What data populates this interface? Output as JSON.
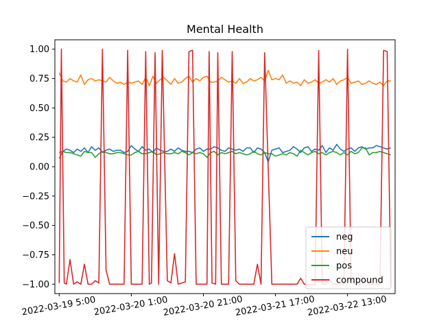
{
  "chart_data": {
    "type": "line",
    "title": "Mental Health",
    "xlabel": "",
    "ylabel": "",
    "x_ticks": [
      "2022-03-19 5:00",
      "2022-03-20 1:00",
      "2022-03-20 21:00",
      "2022-03-21 17:00",
      "2022-03-22 13:00"
    ],
    "y_ticks": [
      "1.00",
      "0.75",
      "0.50",
      "0.25",
      "0.00",
      "−0.25",
      "−0.50",
      "−0.75",
      "−1.00"
    ],
    "ylim": [
      -1.08,
      1.08
    ],
    "xlim": [
      -0.06,
      4.66
    ],
    "grid": false,
    "legend_position": "lower right",
    "series": [
      {
        "name": "neg",
        "color": "#1f77b4",
        "x": [
          0.0,
          0.05,
          0.1,
          0.15,
          0.2,
          0.25,
          0.3,
          0.35,
          0.4,
          0.45,
          0.5,
          0.55,
          0.6,
          0.65,
          0.7,
          0.75,
          0.8,
          0.85,
          0.9,
          0.95,
          1.0,
          1.05,
          1.1,
          1.15,
          1.2,
          1.25,
          1.3,
          1.35,
          1.4,
          1.45,
          1.5,
          1.55,
          1.6,
          1.65,
          1.7,
          1.75,
          1.8,
          1.85,
          1.9,
          1.95,
          2.0,
          2.05,
          2.1,
          2.15,
          2.2,
          2.25,
          2.3,
          2.35,
          2.4,
          2.45,
          2.5,
          2.55,
          2.6,
          2.65,
          2.7,
          2.75,
          2.8,
          2.85,
          2.9,
          2.95,
          3.0,
          3.05,
          3.1,
          3.15,
          3.2,
          3.25,
          3.3,
          3.35,
          3.4,
          3.45,
          3.5,
          3.55,
          3.6,
          3.65,
          3.7,
          3.75,
          3.8,
          3.85,
          3.9,
          3.95,
          4.0,
          4.05,
          4.1,
          4.15,
          4.2,
          4.25,
          4.3,
          4.35,
          4.4,
          4.45,
          4.5,
          4.55,
          4.6
        ],
        "y": [
          0.12,
          0.13,
          0.15,
          0.14,
          0.12,
          0.15,
          0.13,
          0.16,
          0.12,
          0.17,
          0.14,
          0.16,
          0.12,
          0.14,
          0.15,
          0.13,
          0.14,
          0.14,
          0.12,
          0.13,
          0.18,
          0.15,
          0.13,
          0.17,
          0.14,
          0.15,
          0.12,
          0.16,
          0.14,
          0.13,
          0.13,
          0.15,
          0.13,
          0.16,
          0.14,
          0.13,
          0.13,
          0.12,
          0.15,
          0.16,
          0.13,
          0.15,
          0.15,
          0.17,
          0.16,
          0.14,
          0.13,
          0.16,
          0.15,
          0.14,
          0.15,
          0.13,
          0.16,
          0.16,
          0.12,
          0.16,
          0.15,
          0.12,
          0.04,
          0.14,
          0.15,
          0.16,
          0.12,
          0.13,
          0.14,
          0.17,
          0.15,
          0.12,
          0.16,
          0.17,
          0.13,
          0.15,
          0.14,
          0.18,
          0.12,
          0.16,
          0.14,
          0.19,
          0.15,
          0.13,
          0.15,
          0.16,
          0.13,
          0.16,
          0.17,
          0.15,
          0.16,
          0.16,
          0.18,
          0.17,
          0.16,
          0.15,
          0.16
        ]
      },
      {
        "name": "neu",
        "color": "#ff7f0e",
        "x": [
          0.0,
          0.05,
          0.1,
          0.15,
          0.2,
          0.25,
          0.3,
          0.35,
          0.4,
          0.45,
          0.5,
          0.55,
          0.6,
          0.65,
          0.7,
          0.75,
          0.8,
          0.85,
          0.9,
          0.95,
          1.0,
          1.05,
          1.1,
          1.15,
          1.2,
          1.25,
          1.3,
          1.35,
          1.4,
          1.45,
          1.5,
          1.55,
          1.6,
          1.65,
          1.7,
          1.75,
          1.8,
          1.85,
          1.9,
          1.95,
          2.0,
          2.05,
          2.1,
          2.15,
          2.2,
          2.25,
          2.3,
          2.35,
          2.4,
          2.45,
          2.5,
          2.55,
          2.6,
          2.65,
          2.7,
          2.75,
          2.8,
          2.85,
          2.9,
          2.95,
          3.0,
          3.05,
          3.1,
          3.15,
          3.2,
          3.25,
          3.3,
          3.35,
          3.4,
          3.45,
          3.5,
          3.55,
          3.6,
          3.65,
          3.7,
          3.75,
          3.8,
          3.85,
          3.9,
          3.95,
          4.0,
          4.05,
          4.1,
          4.15,
          4.2,
          4.25,
          4.3,
          4.35,
          4.4,
          4.45,
          4.5,
          4.55,
          4.6
        ],
        "y": [
          0.8,
          0.73,
          0.72,
          0.75,
          0.73,
          0.72,
          0.78,
          0.7,
          0.74,
          0.75,
          0.73,
          0.74,
          0.73,
          0.72,
          0.76,
          0.73,
          0.71,
          0.72,
          0.7,
          0.72,
          0.71,
          0.72,
          0.73,
          0.7,
          0.76,
          0.69,
          0.77,
          0.71,
          0.74,
          0.76,
          0.73,
          0.7,
          0.75,
          0.71,
          0.72,
          0.75,
          0.77,
          0.72,
          0.75,
          0.73,
          0.76,
          0.77,
          0.72,
          0.72,
          0.73,
          0.76,
          0.74,
          0.72,
          0.73,
          0.71,
          0.75,
          0.71,
          0.72,
          0.75,
          0.73,
          0.74,
          0.76,
          0.73,
          0.82,
          0.74,
          0.75,
          0.74,
          0.78,
          0.71,
          0.73,
          0.71,
          0.72,
          0.69,
          0.74,
          0.71,
          0.72,
          0.74,
          0.71,
          0.72,
          0.74,
          0.72,
          0.75,
          0.7,
          0.73,
          0.74,
          0.76,
          0.71,
          0.72,
          0.73,
          0.7,
          0.71,
          0.73,
          0.71,
          0.7,
          0.72,
          0.69,
          0.73,
          0.73
        ]
      },
      {
        "name": "pos",
        "color": "#2ca02c",
        "x": [
          0.0,
          0.05,
          0.1,
          0.15,
          0.2,
          0.25,
          0.3,
          0.35,
          0.4,
          0.45,
          0.5,
          0.55,
          0.6,
          0.65,
          0.7,
          0.75,
          0.8,
          0.85,
          0.9,
          0.95,
          1.0,
          1.05,
          1.1,
          1.15,
          1.2,
          1.25,
          1.3,
          1.35,
          1.4,
          1.45,
          1.5,
          1.55,
          1.6,
          1.65,
          1.7,
          1.75,
          1.8,
          1.85,
          1.9,
          1.95,
          2.0,
          2.05,
          2.1,
          2.15,
          2.2,
          2.25,
          2.3,
          2.35,
          2.4,
          2.45,
          2.5,
          2.55,
          2.6,
          2.65,
          2.7,
          2.75,
          2.8,
          2.85,
          2.9,
          2.95,
          3.0,
          3.05,
          3.1,
          3.15,
          3.2,
          3.25,
          3.3,
          3.35,
          3.4,
          3.45,
          3.5,
          3.55,
          3.6,
          3.65,
          3.7,
          3.75,
          3.8,
          3.85,
          3.9,
          3.95,
          4.0,
          4.05,
          4.1,
          4.15,
          4.2,
          4.25,
          4.3,
          4.35,
          4.4,
          4.45,
          4.5,
          4.55,
          4.6
        ],
        "y": [
          0.07,
          0.13,
          0.12,
          0.12,
          0.11,
          0.1,
          0.09,
          0.13,
          0.12,
          0.12,
          0.08,
          0.11,
          0.13,
          0.12,
          0.11,
          0.11,
          0.12,
          0.12,
          0.11,
          0.1,
          0.1,
          0.12,
          0.13,
          0.11,
          0.11,
          0.12,
          0.13,
          0.1,
          0.11,
          0.12,
          0.11,
          0.11,
          0.12,
          0.11,
          0.13,
          0.12,
          0.1,
          0.12,
          0.11,
          0.12,
          0.11,
          0.08,
          0.12,
          0.13,
          0.1,
          0.12,
          0.11,
          0.12,
          0.13,
          0.11,
          0.12,
          0.11,
          0.1,
          0.11,
          0.13,
          0.11,
          0.1,
          0.12,
          0.11,
          0.11,
          0.09,
          0.1,
          0.11,
          0.1,
          0.12,
          0.11,
          0.09,
          0.14,
          0.12,
          0.1,
          0.12,
          0.13,
          0.11,
          0.12,
          0.1,
          0.12,
          0.13,
          0.12,
          0.1,
          0.12,
          0.1,
          0.13,
          0.11,
          0.12,
          0.16,
          0.16,
          0.1,
          0.12,
          0.12,
          0.13,
          0.12,
          0.11,
          0.1
        ]
      },
      {
        "name": "compound",
        "color": "#d62728",
        "x": [
          0.0,
          0.03,
          0.07,
          0.1,
          0.15,
          0.2,
          0.25,
          0.3,
          0.35,
          0.4,
          0.45,
          0.5,
          0.55,
          0.6,
          0.65,
          0.7,
          0.75,
          0.8,
          0.85,
          0.9,
          0.95,
          1.0,
          1.05,
          1.1,
          1.15,
          1.2,
          1.25,
          1.28,
          1.33,
          1.38,
          1.43,
          1.5,
          1.55,
          1.6,
          1.65,
          1.7,
          1.75,
          1.8,
          1.85,
          1.9,
          1.95,
          2.0,
          2.05,
          2.08,
          2.12,
          2.17,
          2.2,
          2.25,
          2.3,
          2.35,
          2.4,
          2.45,
          2.5,
          2.55,
          2.6,
          2.7,
          2.75,
          2.8,
          2.85,
          2.95,
          3.0,
          3.05,
          3.1,
          3.15,
          3.2,
          3.25,
          3.3,
          3.35,
          3.4,
          3.45,
          3.5,
          3.55,
          3.6,
          3.65,
          3.7,
          3.75,
          3.8,
          3.85,
          3.9,
          3.95,
          4.0,
          4.05,
          4.1,
          4.15,
          4.2,
          4.25,
          4.3,
          4.35,
          4.4,
          4.45,
          4.5,
          4.55,
          4.6
        ],
        "y": [
          -0.99,
          1.0,
          -0.99,
          -1.0,
          -0.79,
          -1.0,
          -0.98,
          -1.0,
          -0.83,
          -1.0,
          -1.0,
          -0.97,
          -0.99,
          1.0,
          -0.88,
          -1.0,
          -1.0,
          -1.0,
          -1.0,
          -1.0,
          0.99,
          -1.0,
          -1.0,
          -1.0,
          -1.0,
          0.98,
          -1.0,
          -0.99,
          0.97,
          -1.0,
          0.99,
          -0.97,
          -0.99,
          -0.74,
          -1.0,
          -0.99,
          -0.98,
          0.98,
          0.99,
          -1.0,
          -1.0,
          -1.0,
          -1.0,
          0.98,
          -0.99,
          -1.0,
          0.97,
          -1.0,
          -1.0,
          -1.0,
          0.98,
          -0.97,
          -1.0,
          -1.0,
          -1.0,
          -1.0,
          -0.83,
          -1.0,
          0.97,
          -1.0,
          -1.0,
          -1.0,
          -1.0,
          -1.0,
          -1.0,
          -1.0,
          -1.0,
          -0.95,
          -1.0,
          -1.0,
          -1.0,
          -1.0,
          0.99,
          -1.0,
          -1.0,
          -0.96,
          -1.0,
          -1.0,
          -1.0,
          -1.0,
          1.0,
          -0.98,
          -1.0,
          -1.0,
          -1.0,
          -0.97,
          -1.0,
          -1.0,
          -1.0,
          -1.0,
          0.99,
          0.98,
          -1.0
        ]
      }
    ]
  }
}
